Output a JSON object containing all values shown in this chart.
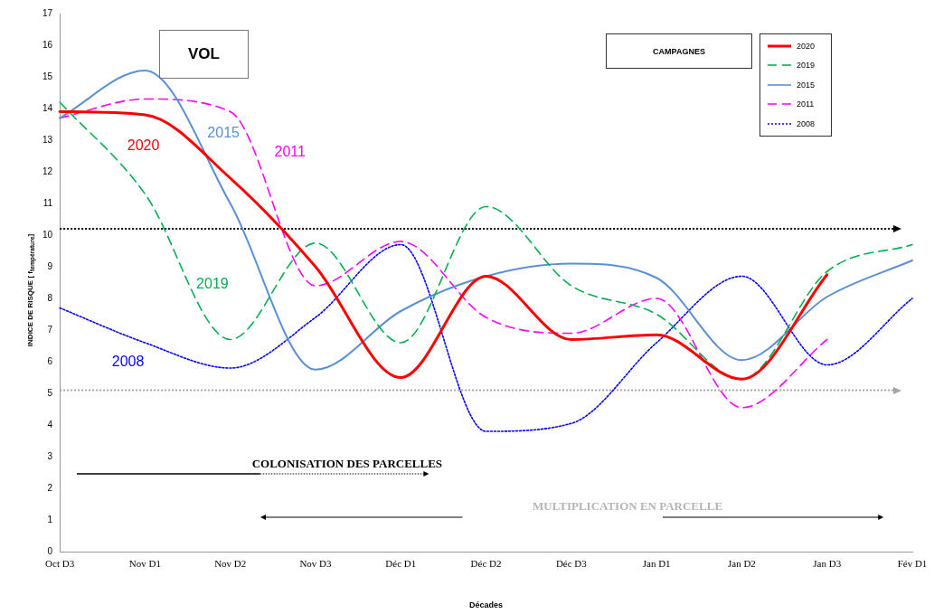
{
  "chart_data": {
    "type": "line",
    "title": "VOL",
    "xlabel": "Décades",
    "ylabel": "INDICE DE RISQUE [ f$_{température}$]",
    "legend_title": "CAMPAGNES",
    "legend": "top right",
    "grid": false,
    "marker": "none",
    "categories": [
      "Oct D3",
      "Nov D1",
      "Nov D2",
      "Nov D3",
      "Déc D1",
      "Déc D2",
      "Déc D3",
      "Jan D1",
      "Jan D2",
      "Jan D3",
      "Fév D1"
    ],
    "ylim": [
      0,
      17
    ],
    "yticks": [
      0,
      1,
      2,
      3,
      4,
      5,
      6,
      7,
      8,
      9,
      10,
      11,
      12,
      13,
      14,
      15,
      16,
      17
    ],
    "series": [
      {
        "name": "2020",
        "color": "#ff0000",
        "line_style": "solid",
        "values": [
          13.9,
          13.8,
          11.8,
          9.0,
          5.5,
          8.7,
          6.7,
          6.85,
          5.45,
          8.75,
          null
        ]
      },
      {
        "name": "2019",
        "color": "#00b050",
        "line_style": "dashed",
        "values": [
          14.2,
          11.3,
          6.7,
          9.75,
          6.6,
          10.9,
          8.4,
          7.5,
          5.45,
          8.85,
          9.7
        ]
      },
      {
        "name": "2015",
        "color": "#5b8fd6",
        "line_style": "solid",
        "values": [
          13.7,
          15.2,
          11.0,
          5.75,
          7.6,
          8.7,
          9.1,
          8.65,
          6.05,
          8.05,
          9.2
        ]
      },
      {
        "name": "2011",
        "color": "#ff00ff",
        "line_style": "dashed",
        "values": [
          13.7,
          14.3,
          13.9,
          8.4,
          9.8,
          7.4,
          6.9,
          8.0,
          4.55,
          6.7,
          null
        ]
      },
      {
        "name": "2008",
        "color": "#0000ff",
        "line_style": "dotted",
        "values": [
          7.7,
          6.6,
          5.8,
          7.4,
          9.7,
          3.8,
          4.05,
          6.6,
          8.7,
          5.9,
          8.0
        ]
      }
    ],
    "ref_lines": [
      {
        "axis": "y",
        "value": 10.2,
        "color": "#000000",
        "line_style": "dotted"
      },
      {
        "axis": "y",
        "value": 5.1,
        "color": "#a6a6a6",
        "line_style": "dotted"
      }
    ],
    "annotations": [
      "2020",
      "2019",
      "2015",
      "2011",
      "2008",
      "COLONISATION DES PARCELLES",
      "MULTIPLICATION EN PARCELLE"
    ]
  }
}
